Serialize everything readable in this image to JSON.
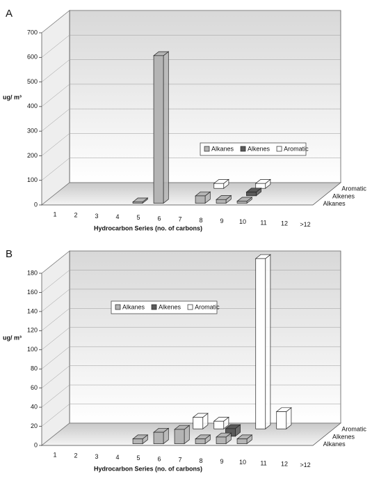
{
  "chart_data": [
    {
      "type": "bar3d",
      "panel": "A",
      "y_label": "ug/ m³",
      "x_label": "Hydrocarbon Series (no. of carbons)",
      "categories": [
        "1",
        "2",
        "3",
        "4",
        "5",
        "6",
        "7",
        "8",
        "9",
        "10",
        "11",
        "12",
        ">12"
      ],
      "series": [
        {
          "name": "Alkanes",
          "color": "#b4b4b4",
          "values": [
            0,
            0,
            0,
            0,
            5,
            600,
            0,
            30,
            15,
            8,
            0,
            0,
            0
          ]
        },
        {
          "name": "Alkenes",
          "color": "#5a5a5a",
          "values": [
            0,
            0,
            0,
            0,
            0,
            0,
            0,
            0,
            0,
            15,
            0,
            0,
            0
          ]
        },
        {
          "name": "Aromatic",
          "color": "#ffffff",
          "values": [
            0,
            0,
            0,
            0,
            0,
            0,
            0,
            20,
            0,
            20,
            0,
            0,
            0
          ]
        }
      ],
      "ylim": [
        0,
        700
      ],
      "yticks": [
        0,
        100,
        200,
        300,
        400,
        500,
        600,
        700
      ],
      "grid": true,
      "legend": "center-right"
    },
    {
      "type": "bar3d",
      "panel": "B",
      "y_label": "ug/ m³",
      "x_label": "Hydrocarbon Series (no. of carbons)",
      "categories": [
        "1",
        "2",
        "3",
        "4",
        "5",
        "6",
        "7",
        "8",
        "9",
        "10",
        "11",
        "12",
        ">12"
      ],
      "series": [
        {
          "name": "Alkanes",
          "color": "#b4b4b4",
          "values": [
            0,
            0,
            0,
            0,
            5,
            12,
            15,
            5,
            7,
            5,
            0,
            0,
            0
          ]
        },
        {
          "name": "Alkenes",
          "color": "#5a5a5a",
          "values": [
            0,
            0,
            0,
            0,
            0,
            0,
            0,
            0,
            8,
            0,
            0,
            0,
            0
          ]
        },
        {
          "name": "Aromatic",
          "color": "#ffffff",
          "values": [
            0,
            0,
            0,
            0,
            0,
            0,
            12,
            8,
            0,
            178,
            18,
            0,
            0
          ]
        }
      ],
      "ylim": [
        0,
        180
      ],
      "yticks": [
        0,
        20,
        40,
        60,
        80,
        100,
        120,
        140,
        160,
        180
      ],
      "grid": true,
      "legend": "upper-left"
    }
  ]
}
